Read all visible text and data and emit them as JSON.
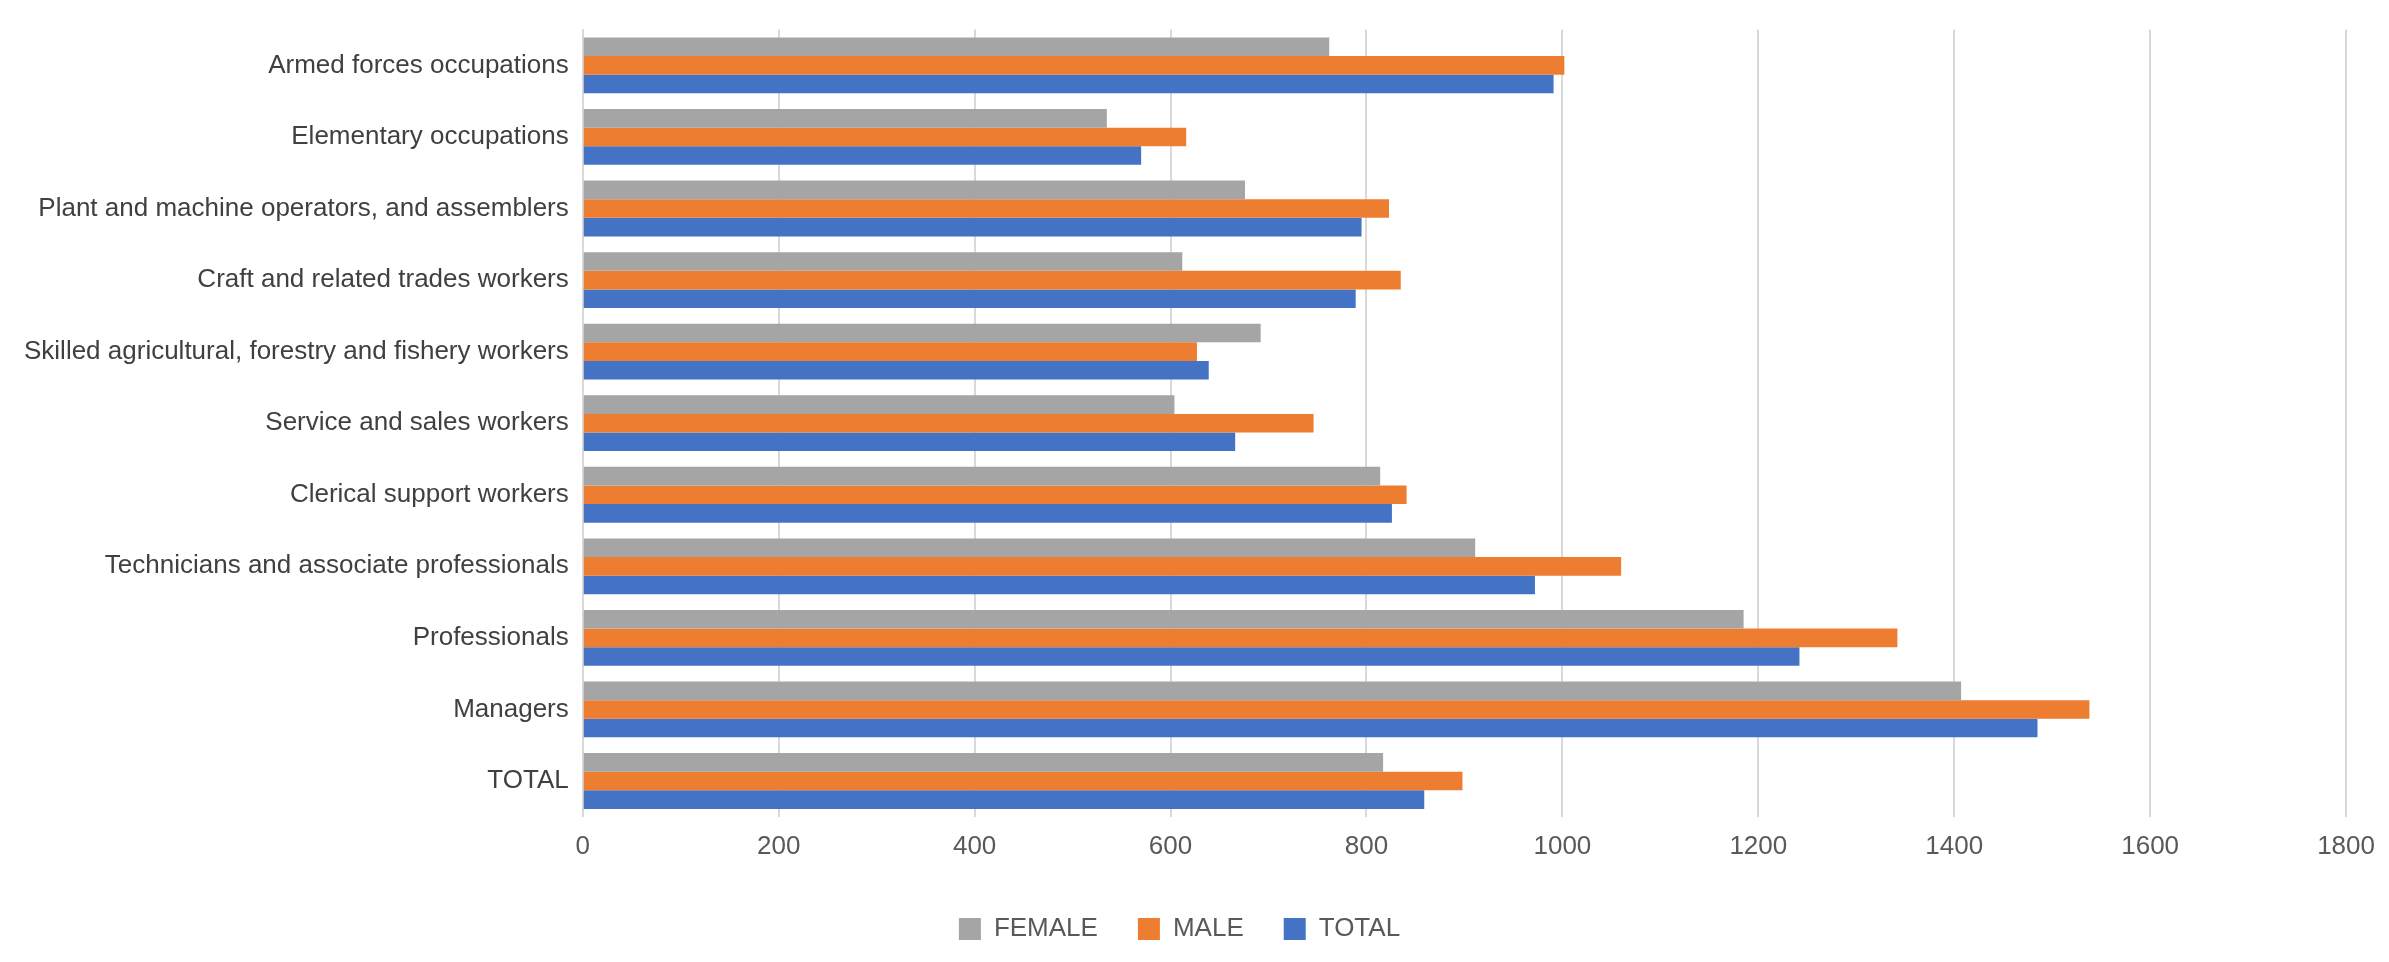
{
  "chart_data": {
    "type": "bar",
    "orientation": "horizontal",
    "categories": [
      "Armed forces occupations",
      "Elementary occupations",
      "Plant and machine operators, and assemblers",
      "Craft and related trades workers",
      "Skilled agricultural, forestry and fishery workers",
      "Service and sales workers",
      "Clerical support workers",
      "Technicians and associate professionals",
      "Professionals",
      "Managers",
      "TOTAL"
    ],
    "series": [
      {
        "name": "FEMALE",
        "color": "#a5a5a5",
        "values": [
          762,
          535,
          676,
          612,
          692,
          604,
          814,
          911,
          1185,
          1407,
          817
        ]
      },
      {
        "name": "MALE",
        "color": "#ed7d31",
        "values": [
          1002,
          616,
          823,
          835,
          627,
          746,
          841,
          1060,
          1342,
          1538,
          898
        ]
      },
      {
        "name": "TOTAL",
        "color": "#4472c4",
        "values": [
          991,
          570,
          795,
          789,
          639,
          666,
          826,
          972,
          1242,
          1485,
          859
        ]
      }
    ],
    "xlim": [
      0,
      1800
    ],
    "xticks": [
      0,
      200,
      400,
      600,
      800,
      1000,
      1200,
      1400,
      1600,
      1800
    ],
    "grid": "x",
    "legend": "bottom"
  }
}
